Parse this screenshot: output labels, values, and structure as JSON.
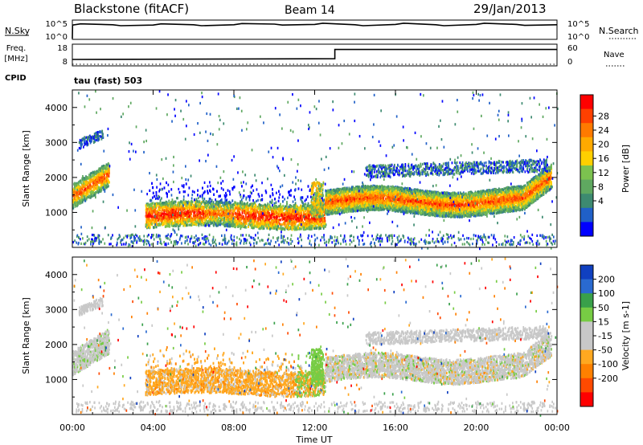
{
  "header": {
    "station": "Blackstone (fitACF)",
    "beam": "Beam 14",
    "date": "29/Jan/2013"
  },
  "panel_labels": {
    "nsky": "N.Sky",
    "nsearch": "N.Search",
    "freq_l1": "Freq.",
    "freq_l2": "[MHz]",
    "nave": "Nave",
    "cpid": "CPID",
    "cpid_value": "tau (fast) 503"
  },
  "noise_panel": {
    "left_ticks": [
      "10^5",
      "10^0"
    ],
    "right_ticks": [
      "10^5",
      "10^0"
    ]
  },
  "freq_panel": {
    "left_ticks": [
      "18",
      "8"
    ],
    "right_ticks": [
      "60",
      "0"
    ]
  },
  "colors": {
    "power": [
      "#0000ff",
      "#2060c8",
      "#3d8a70",
      "#5fa860",
      "#7cc24f",
      "#ffd000",
      "#ffaa00",
      "#ff7a00",
      "#ff4000",
      "#ff0000"
    ],
    "velocity": [
      "#1040c0",
      "#2a6ad0",
      "#39a04a",
      "#77cc44",
      "#c8c8c8",
      "#c8c8c8",
      "#ffa820",
      "#ff8000",
      "#ff4a00",
      "#ff0000"
    ]
  },
  "chart_data": [
    {
      "type": "line",
      "name": "noise",
      "x_range": [
        0,
        24
      ],
      "series": [
        {
          "name": "N.Sky",
          "x": [
            0,
            0.01,
            2,
            4,
            6,
            8,
            10,
            12,
            14,
            16,
            18,
            20,
            22,
            24
          ],
          "y_log": [
            0,
            4.2,
            4.3,
            4.2,
            4.3,
            4.3,
            4.5,
            4.4,
            4.3,
            4.4,
            4.3,
            4.4,
            4.4,
            4.3
          ]
        }
      ]
    },
    {
      "type": "line",
      "name": "frequency",
      "x_range": [
        0,
        24
      ],
      "series": [
        {
          "name": "Freq.",
          "x": [
            0,
            13,
            13,
            24
          ],
          "y": [
            10.6,
            11,
            16,
            16
          ]
        },
        {
          "name": "Nave",
          "x": [
            0,
            24
          ],
          "y": [
            0,
            0
          ]
        }
      ]
    },
    {
      "type": "heatmap",
      "name": "power",
      "xlabel": "",
      "ylabel": "Slant Range [km]",
      "x_range": [
        0,
        24
      ],
      "ylim": [
        0,
        4500
      ],
      "y_ticks": [
        1000,
        2000,
        3000,
        4000
      ],
      "colorbar_label": "Power [dB]",
      "colorbar_ticks": [
        "28",
        "24",
        "20",
        "16",
        "12",
        "8",
        "4"
      ],
      "colorbar_range": [
        0,
        32
      ]
    },
    {
      "type": "heatmap",
      "name": "velocity",
      "xlabel": "Time UT",
      "ylabel": "Slant Range [km]",
      "x_range": [
        0,
        24
      ],
      "ylim": [
        0,
        4500
      ],
      "x_ticks": [
        "00:00",
        "04:00",
        "08:00",
        "12:00",
        "16:00",
        "20:00",
        "00:00"
      ],
      "y_ticks": [
        1000,
        2000,
        3000,
        4000
      ],
      "colorbar_label": "Velocity [m s-1]",
      "colorbar_ticks": [
        "200",
        "100",
        "50",
        "15",
        "-15",
        "-50",
        "-100",
        "-200"
      ]
    }
  ]
}
